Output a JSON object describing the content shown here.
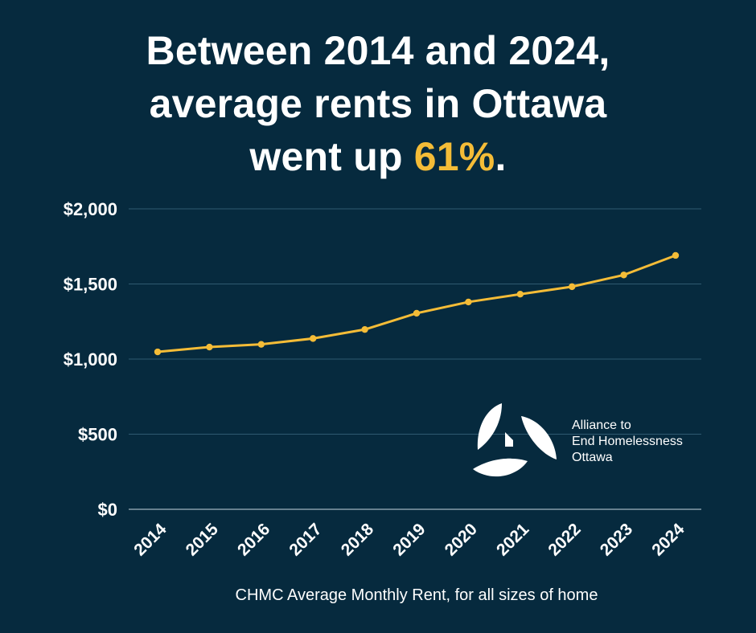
{
  "headline": {
    "line1": "Between 2014 and 2024,",
    "line2": "average rents in Ottawa",
    "line3_prefix": "went up ",
    "line3_highlight": "61%",
    "line3_suffix": "."
  },
  "colors": {
    "background": "#062a3e",
    "accent": "#f4bc37",
    "grid": "#2f5a70",
    "text": "#ffffff"
  },
  "chart_data": {
    "type": "line",
    "title": "Between 2014 and 2024, average rents in Ottawa went up 61%.",
    "xlabel": "CHMC Average Monthly Rent, for all sizes of home",
    "ylabel": "",
    "categories": [
      "2014",
      "2015",
      "2016",
      "2017",
      "2018",
      "2019",
      "2020",
      "2021",
      "2022",
      "2023",
      "2024"
    ],
    "series": [
      {
        "name": "Average Monthly Rent",
        "values": [
          1048,
          1080,
          1098,
          1137,
          1197,
          1305,
          1380,
          1432,
          1482,
          1560,
          1690
        ]
      }
    ],
    "ylim": [
      0,
      2000
    ],
    "yticks": [
      0,
      500,
      1000,
      1500,
      2000
    ],
    "ytick_labels": [
      "$0",
      "$500",
      "$1,000",
      "$1,500",
      "$2,000"
    ],
    "grid": true,
    "legend": "none"
  },
  "caption": "CHMC Average Monthly Rent, for all sizes of home",
  "logo": {
    "line1": "Alliance to",
    "line2": "End Homelessness",
    "line3": "Ottawa",
    "icon": "alliance-logo-icon"
  }
}
